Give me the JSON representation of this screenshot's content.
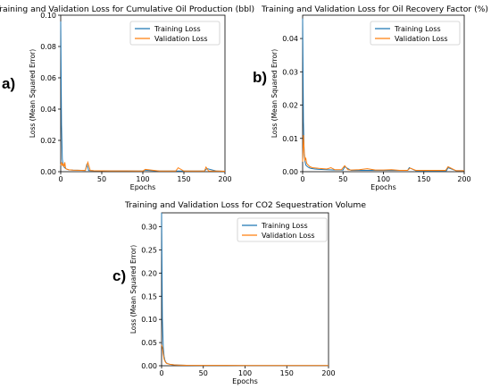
{
  "panel_labels": [
    "a)",
    "b)",
    "c)"
  ],
  "chart_data": [
    {
      "type": "line",
      "title": "Training and Validation Loss for Cumulative Oil Production (bbl)",
      "xlabel": "Epochs",
      "ylabel": "Loss (Mean Squared Error)",
      "xlim": [
        0,
        200
      ],
      "ylim": [
        0,
        0.1
      ],
      "xticks": [
        "0",
        "50",
        "100",
        "150",
        "200"
      ],
      "yticks": [
        "0.00",
        "0.02",
        "0.04",
        "0.06",
        "0.08",
        "0.10"
      ],
      "grid": false,
      "legend_position": "top-right",
      "colors": {
        "Training Loss": "#1f77b4",
        "Validation Loss": "#ff7f0e"
      },
      "series": [
        {
          "name": "Training Loss",
          "x": [
            0,
            1,
            2,
            3,
            4,
            6,
            8,
            10,
            15,
            20,
            30,
            32,
            34,
            40,
            60,
            80,
            100,
            102,
            120,
            140,
            150,
            160,
            175,
            178,
            190,
            200
          ],
          "y": [
            0.096,
            0.03,
            0.008,
            0.004,
            0.003,
            0.002,
            0.0015,
            0.0012,
            0.001,
            0.0009,
            0.0008,
            0.005,
            0.0008,
            0.0006,
            0.0005,
            0.0005,
            0.0004,
            0.001,
            0.0004,
            0.0004,
            0.0004,
            0.0004,
            0.0004,
            0.002,
            0.0004,
            0.0003
          ]
        },
        {
          "name": "Validation Loss",
          "x": [
            0,
            1,
            2,
            3,
            4,
            5,
            6,
            8,
            10,
            15,
            20,
            30,
            33,
            36,
            40,
            60,
            80,
            100,
            103,
            120,
            140,
            143,
            150,
            160,
            175,
            177,
            180,
            190,
            200
          ],
          "y": [
            0.004,
            0.006,
            0.004,
            0.005,
            0.003,
            0.006,
            0.002,
            0.0015,
            0.0012,
            0.001,
            0.0009,
            0.0008,
            0.006,
            0.0008,
            0.0006,
            0.0005,
            0.0005,
            0.0004,
            0.0015,
            0.0004,
            0.0004,
            0.0025,
            0.0004,
            0.0004,
            0.0004,
            0.003,
            0.0004,
            0.0004,
            0.0003
          ]
        }
      ]
    },
    {
      "type": "line",
      "title": "Training and Validation Loss for Oil Recovery Factor (%)",
      "xlabel": "Epochs",
      "ylabel": "Loss (Mean Squared Error)",
      "xlim": [
        0,
        200
      ],
      "ylim": [
        0,
        0.047
      ],
      "xticks": [
        "0",
        "50",
        "100",
        "150",
        "200"
      ],
      "yticks": [
        "0.00",
        "0.01",
        "0.02",
        "0.03",
        "0.04"
      ],
      "grid": false,
      "legend_position": "top-right",
      "colors": {
        "Training Loss": "#1f77b4",
        "Validation Loss": "#ff7f0e"
      },
      "series": [
        {
          "name": "Training Loss",
          "x": [
            0,
            1,
            2,
            3,
            4,
            6,
            8,
            10,
            15,
            20,
            30,
            40,
            50,
            52,
            60,
            80,
            100,
            120,
            130,
            132,
            140,
            160,
            178,
            180,
            190,
            200
          ],
          "y": [
            0.046,
            0.015,
            0.005,
            0.003,
            0.002,
            0.0015,
            0.0012,
            0.001,
            0.0008,
            0.0007,
            0.0006,
            0.0005,
            0.0005,
            0.0015,
            0.0004,
            0.0004,
            0.0004,
            0.0004,
            0.0004,
            0.0012,
            0.0003,
            0.0003,
            0.0003,
            0.0012,
            0.0003,
            0.0003
          ]
        },
        {
          "name": "Validation Loss",
          "x": [
            0,
            1,
            2,
            3,
            4,
            5,
            7,
            9,
            12,
            20,
            30,
            35,
            40,
            48,
            52,
            56,
            60,
            70,
            80,
            90,
            100,
            110,
            120,
            130,
            133,
            140,
            160,
            177,
            180,
            190,
            200
          ],
          "y": [
            0.003,
            0.011,
            0.006,
            0.0035,
            0.004,
            0.0025,
            0.002,
            0.0015,
            0.0012,
            0.001,
            0.0008,
            0.0012,
            0.0006,
            0.0006,
            0.0018,
            0.0006,
            0.0005,
            0.0006,
            0.0009,
            0.0005,
            0.0005,
            0.0006,
            0.0004,
            0.0004,
            0.0011,
            0.0004,
            0.0004,
            0.0004,
            0.0015,
            0.0003,
            0.0003
          ]
        }
      ]
    },
    {
      "type": "line",
      "title": "Training and Validation Loss for CO2 Sequestration Volume",
      "xlabel": "Epochs",
      "ylabel": "Loss (Mean Squared Error)",
      "xlim": [
        0,
        200
      ],
      "ylim": [
        0,
        0.33
      ],
      "xticks": [
        "0",
        "50",
        "100",
        "150",
        "200"
      ],
      "yticks": [
        "0.00",
        "0.05",
        "0.10",
        "0.15",
        "0.20",
        "0.25",
        "0.30"
      ],
      "grid": false,
      "legend_position": "top-right",
      "colors": {
        "Training Loss": "#1f77b4",
        "Validation Loss": "#ff7f0e"
      },
      "series": [
        {
          "name": "Training Loss",
          "x": [
            0,
            1,
            2,
            3,
            4,
            5,
            6,
            8,
            10,
            15,
            20,
            30,
            50,
            100,
            150,
            200
          ],
          "y": [
            0.33,
            0.1,
            0.04,
            0.02,
            0.012,
            0.008,
            0.006,
            0.004,
            0.003,
            0.002,
            0.0015,
            0.001,
            0.0008,
            0.0005,
            0.0004,
            0.0003
          ]
        },
        {
          "name": "Validation Loss",
          "x": [
            0,
            1,
            2,
            3,
            4,
            5,
            6,
            8,
            10,
            15,
            20,
            30,
            50,
            100,
            150,
            200
          ],
          "y": [
            0.045,
            0.04,
            0.025,
            0.015,
            0.01,
            0.007,
            0.005,
            0.004,
            0.003,
            0.002,
            0.0015,
            0.001,
            0.0008,
            0.0005,
            0.0004,
            0.0003
          ]
        }
      ]
    }
  ]
}
